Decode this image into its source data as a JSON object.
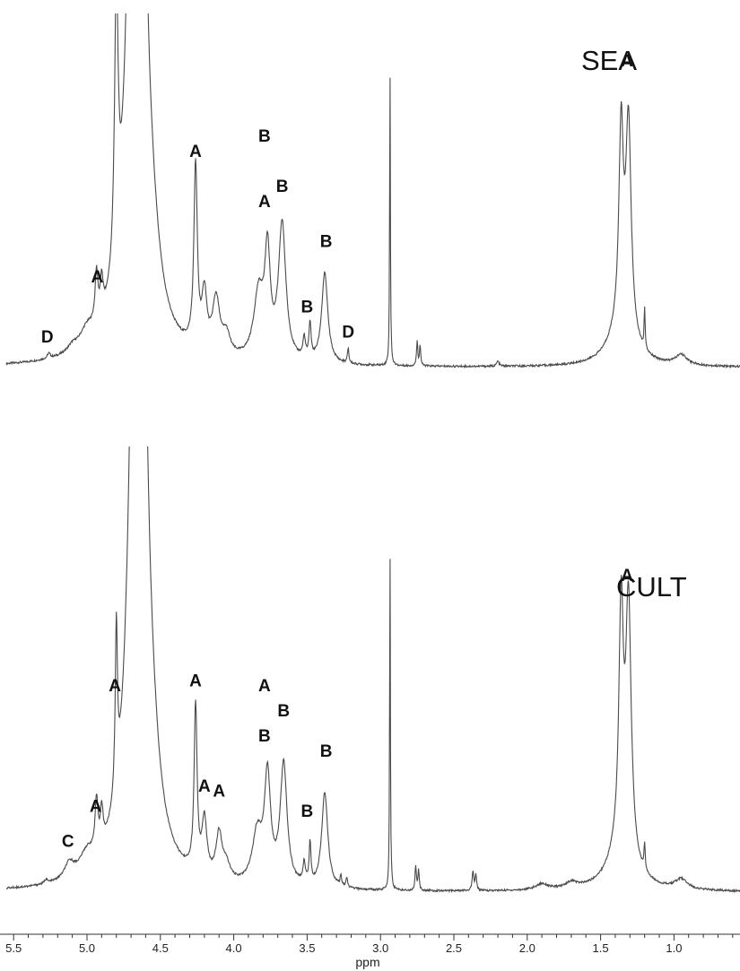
{
  "chart_data": [
    {
      "type": "line",
      "title": "SEA",
      "xlabel": "ppm",
      "ylabel": "",
      "xlim": [
        5.55,
        0.55
      ],
      "x_reversed": true,
      "color": "#4a4a4a",
      "peaks": [
        {
          "ppm": 5.26,
          "height": 0.01,
          "width": 0.012
        },
        {
          "ppm": 5.1,
          "height": 0.012,
          "width": 0.04
        },
        {
          "ppm": 5.0,
          "height": 0.035,
          "width": 0.06
        },
        {
          "ppm": 4.935,
          "height": 0.1,
          "width": 0.012
        },
        {
          "ppm": 4.9,
          "height": 0.07,
          "width": 0.012
        },
        {
          "ppm": 4.8,
          "height": 0.56,
          "width": 0.014
        },
        {
          "ppm": 4.66,
          "height": 2.2,
          "width": 0.05
        },
        {
          "ppm": 4.55,
          "height": 0.06,
          "width": 0.06
        },
        {
          "ppm": 4.26,
          "height": 0.36,
          "width": 0.014
        },
        {
          "ppm": 4.2,
          "height": 0.11,
          "width": 0.02
        },
        {
          "ppm": 4.12,
          "height": 0.11,
          "width": 0.03
        },
        {
          "ppm": 4.05,
          "height": 0.04,
          "width": 0.03
        },
        {
          "ppm": 3.83,
          "height": 0.13,
          "width": 0.04
        },
        {
          "ppm": 3.77,
          "height": 0.2,
          "width": 0.022
        },
        {
          "ppm": 3.67,
          "height": 0.27,
          "width": 0.03
        },
        {
          "ppm": 3.52,
          "height": 0.04,
          "width": 0.01
        },
        {
          "ppm": 3.48,
          "height": 0.07,
          "width": 0.008
        },
        {
          "ppm": 3.38,
          "height": 0.18,
          "width": 0.025
        },
        {
          "ppm": 3.22,
          "height": 0.03,
          "width": 0.006
        },
        {
          "ppm": 2.935,
          "height": 0.6,
          "width": 0.003
        },
        {
          "ppm": 2.75,
          "height": 0.05,
          "width": 0.005
        },
        {
          "ppm": 2.73,
          "height": 0.04,
          "width": 0.005
        },
        {
          "ppm": 2.2,
          "height": 0.01,
          "width": 0.01
        },
        {
          "ppm": 1.36,
          "height": 0.39,
          "width": 0.018
        },
        {
          "ppm": 1.31,
          "height": 0.42,
          "width": 0.022
        },
        {
          "ppm": 1.36,
          "height": 0.07,
          "width": 0.1
        },
        {
          "ppm": 1.2,
          "height": 0.08,
          "width": 0.004
        },
        {
          "ppm": 0.95,
          "height": 0.02,
          "width": 0.05
        }
      ],
      "annotations": [
        {
          "text": "D",
          "ppm": 5.27,
          "level": 0.05
        },
        {
          "text": "A",
          "ppm": 4.93,
          "level": 0.17
        },
        {
          "text": "A",
          "ppm": 4.26,
          "level": 0.42
        },
        {
          "text": "B",
          "ppm": 3.79,
          "level": 0.45
        },
        {
          "text": "A",
          "ppm": 3.79,
          "level": 0.32
        },
        {
          "text": "B",
          "ppm": 3.67,
          "level": 0.35
        },
        {
          "text": "B",
          "ppm": 3.5,
          "level": 0.11
        },
        {
          "text": "B",
          "ppm": 3.37,
          "level": 0.24
        },
        {
          "text": "D",
          "ppm": 3.22,
          "level": 0.06
        },
        {
          "text": "A",
          "ppm": 1.32,
          "level": 0.6
        }
      ]
    },
    {
      "type": "line",
      "title": "CULT",
      "xlabel": "ppm",
      "ylabel": "",
      "xlim": [
        5.55,
        0.55
      ],
      "x_reversed": true,
      "color": "#4a4a4a",
      "peaks": [
        {
          "ppm": 5.28,
          "height": 0.008,
          "width": 0.012
        },
        {
          "ppm": 5.12,
          "height": 0.03,
          "width": 0.04
        },
        {
          "ppm": 5.0,
          "height": 0.04,
          "width": 0.06
        },
        {
          "ppm": 4.935,
          "height": 0.1,
          "width": 0.012
        },
        {
          "ppm": 4.9,
          "height": 0.07,
          "width": 0.012
        },
        {
          "ppm": 4.8,
          "height": 0.33,
          "width": 0.009
        },
        {
          "ppm": 4.65,
          "height": 2.2,
          "width": 0.05
        },
        {
          "ppm": 4.55,
          "height": 0.06,
          "width": 0.06
        },
        {
          "ppm": 4.26,
          "height": 0.33,
          "width": 0.012
        },
        {
          "ppm": 4.2,
          "height": 0.11,
          "width": 0.02
        },
        {
          "ppm": 4.1,
          "height": 0.09,
          "width": 0.025
        },
        {
          "ppm": 4.05,
          "height": 0.03,
          "width": 0.03
        },
        {
          "ppm": 3.84,
          "height": 0.1,
          "width": 0.04
        },
        {
          "ppm": 3.77,
          "height": 0.21,
          "width": 0.025
        },
        {
          "ppm": 3.66,
          "height": 0.24,
          "width": 0.028
        },
        {
          "ppm": 3.52,
          "height": 0.04,
          "width": 0.01
        },
        {
          "ppm": 3.48,
          "height": 0.08,
          "width": 0.007
        },
        {
          "ppm": 3.38,
          "height": 0.19,
          "width": 0.025
        },
        {
          "ppm": 3.27,
          "height": 0.02,
          "width": 0.006
        },
        {
          "ppm": 3.23,
          "height": 0.02,
          "width": 0.006
        },
        {
          "ppm": 2.935,
          "height": 0.69,
          "width": 0.003
        },
        {
          "ppm": 2.76,
          "height": 0.05,
          "width": 0.005
        },
        {
          "ppm": 2.74,
          "height": 0.04,
          "width": 0.005
        },
        {
          "ppm": 2.37,
          "height": 0.04,
          "width": 0.006
        },
        {
          "ppm": 2.35,
          "height": 0.03,
          "width": 0.006
        },
        {
          "ppm": 1.9,
          "height": 0.012,
          "width": 0.05
        },
        {
          "ppm": 1.7,
          "height": 0.012,
          "width": 0.05
        },
        {
          "ppm": 1.36,
          "height": 0.47,
          "width": 0.018
        },
        {
          "ppm": 1.31,
          "height": 0.5,
          "width": 0.022
        },
        {
          "ppm": 1.36,
          "height": 0.08,
          "width": 0.1
        },
        {
          "ppm": 1.2,
          "height": 0.05,
          "width": 0.005
        },
        {
          "ppm": 0.95,
          "height": 0.02,
          "width": 0.05
        }
      ],
      "annotations": [
        {
          "text": "C",
          "ppm": 5.13,
          "level": 0.09
        },
        {
          "text": "A",
          "ppm": 4.94,
          "level": 0.16
        },
        {
          "text": "A",
          "ppm": 4.81,
          "level": 0.4
        },
        {
          "text": "A",
          "ppm": 4.26,
          "level": 0.41
        },
        {
          "text": "A",
          "ppm": 4.2,
          "level": 0.2
        },
        {
          "text": "A",
          "ppm": 4.1,
          "level": 0.19
        },
        {
          "text": "A",
          "ppm": 3.79,
          "level": 0.4
        },
        {
          "text": "B",
          "ppm": 3.79,
          "level": 0.3
        },
        {
          "text": "B",
          "ppm": 3.66,
          "level": 0.35
        },
        {
          "text": "B",
          "ppm": 3.5,
          "level": 0.15
        },
        {
          "text": "B",
          "ppm": 3.37,
          "level": 0.27
        },
        {
          "text": "A",
          "ppm": 1.32,
          "level": 0.62
        }
      ]
    }
  ],
  "x_axis": {
    "label": "ppm",
    "ticks": [
      "5.5",
      "5.0",
      "4.5",
      "4.0",
      "3.5",
      "3.0",
      "2.5",
      "2.0",
      "1.5",
      "1.0"
    ],
    "tick_values": [
      5.5,
      5.0,
      4.5,
      4.0,
      3.5,
      3.0,
      2.5,
      2.0,
      1.5,
      1.0
    ]
  }
}
